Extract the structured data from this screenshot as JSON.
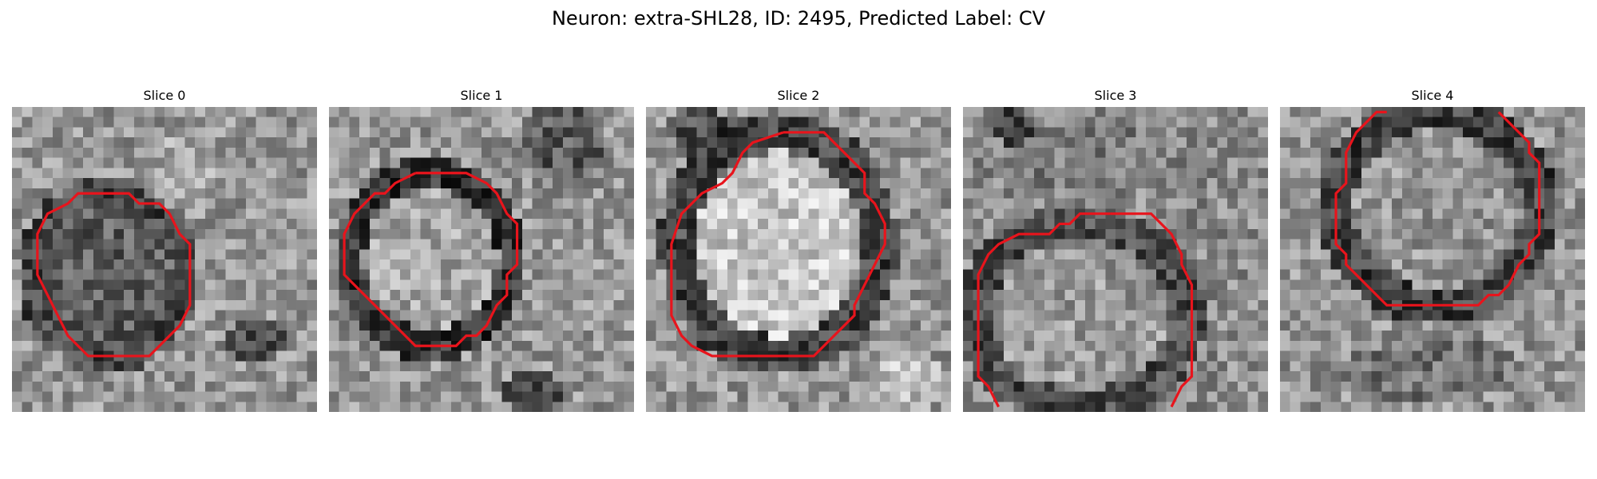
{
  "figure": {
    "title": "Neuron: extra-SHL28, ID: 2495, Predicted Label: CV",
    "contour_color": "#e8141c"
  },
  "panels": [
    {
      "title": "Slice 0"
    },
    {
      "title": "Slice 1"
    },
    {
      "title": "Slice 2"
    },
    {
      "title": "Slice 3"
    },
    {
      "title": "Slice 4"
    }
  ]
}
